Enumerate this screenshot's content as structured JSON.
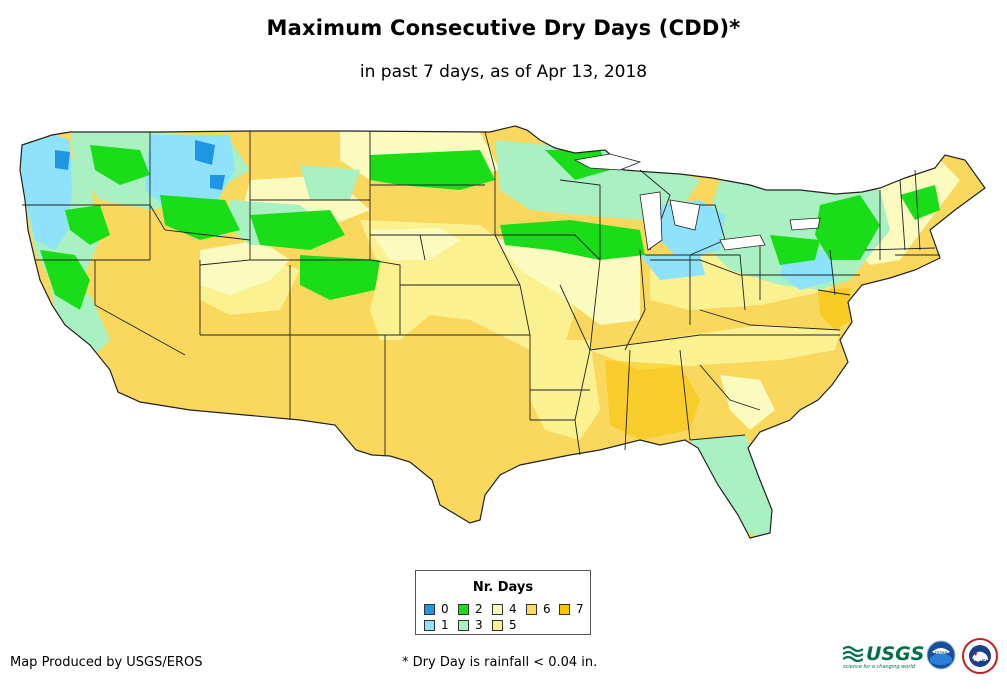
{
  "title": "Maximum Consecutive Dry Days (CDD)*",
  "subtitle": "in past 7 days, as of Apr 13, 2018",
  "legend": {
    "title": "Nr. Days",
    "items": [
      {
        "label": "0",
        "color": "#1f96e4"
      },
      {
        "label": "1",
        "color": "#8ee3fb"
      },
      {
        "label": "2",
        "color": "#19dd19"
      },
      {
        "label": "3",
        "color": "#a9f0c2"
      },
      {
        "label": "4",
        "color": "#fbfbc0"
      },
      {
        "label": "5",
        "color": "#fbf191"
      },
      {
        "label": "6",
        "color": "#f9d85d"
      },
      {
        "label": "7",
        "color": "#f8c300"
      }
    ]
  },
  "credit": "Map Produced by USGS/EROS",
  "footnote": "* Dry Day is rainfall < 0.04 in.",
  "logos": {
    "usgs": "USGS",
    "usgs_tagline": "science for a changing world",
    "noaa": "noaa",
    "nws": "NWS"
  },
  "icons": [
    "usgs-logo-icon",
    "noaa-logo-icon",
    "nws-logo-icon"
  ]
}
